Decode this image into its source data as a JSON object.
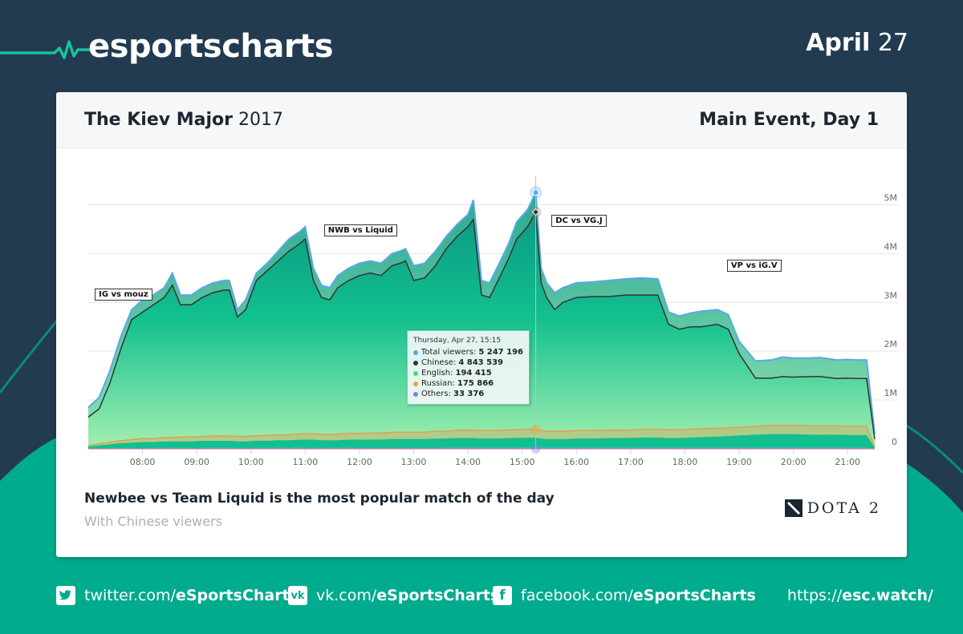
{
  "brand": {
    "name": "esportscharts",
    "date_month": "April",
    "date_day": "27"
  },
  "card": {
    "title_strong": "The Kiev Major",
    "title_year": "2017",
    "subtitle": "Main Event, Day 1",
    "headline": "Newbee vs Team Liquid is the most popular match of the day",
    "subheadline": "With Chinese viewers",
    "game_logo_text": "DOTA 2"
  },
  "colors": {
    "background": "#223b51",
    "accent": "#00ab8e",
    "total_viewers": "#5aa9e6",
    "chinese": "#333333",
    "english": "#3ddc84",
    "russian": "#f59b42",
    "others": "#8080e0"
  },
  "tooltip": {
    "date": "Thursday, Apr 27, 15:15",
    "rows": [
      {
        "label": "Total viewers:",
        "value": "5 247 196",
        "color": "#5aa9e6"
      },
      {
        "label": "Chinese:",
        "value": "4 843 539",
        "color": "#333333"
      },
      {
        "label": "English:",
        "value": "194 415",
        "color": "#3ddc84"
      },
      {
        "label": "Russian:",
        "value": "175 866",
        "color": "#f59b42"
      },
      {
        "label": "Others:",
        "value": "33 376",
        "color": "#8080e0"
      }
    ]
  },
  "chart_data": {
    "type": "area",
    "title": "",
    "xlabel": "",
    "ylabel": "",
    "x_range": [
      "07:00",
      "21:30"
    ],
    "ylim": [
      0,
      5500000
    ],
    "y_ticks": [
      "0",
      "1M",
      "2M",
      "3M",
      "4M",
      "5M"
    ],
    "y_tick_values": [
      0,
      1000000,
      2000000,
      3000000,
      4000000,
      5000000
    ],
    "x_ticks": [
      "08:00",
      "09:00",
      "10:00",
      "11:00",
      "12:00",
      "13:00",
      "14:00",
      "15:00",
      "16:00",
      "17:00",
      "18:00",
      "19:00",
      "20:00",
      "21:00"
    ],
    "grid": true,
    "legend": "none",
    "x_hours": [
      7.0,
      7.2,
      7.4,
      7.6,
      7.8,
      8.0,
      8.2,
      8.4,
      8.55,
      8.7,
      8.9,
      9.1,
      9.3,
      9.5,
      9.6,
      9.75,
      9.9,
      10.1,
      10.3,
      10.5,
      10.7,
      10.9,
      11.0,
      11.15,
      11.3,
      11.45,
      11.6,
      11.8,
      12.0,
      12.2,
      12.4,
      12.6,
      12.75,
      12.85,
      13.0,
      13.2,
      13.4,
      13.6,
      13.8,
      14.0,
      14.1,
      14.25,
      14.4,
      14.6,
      14.75,
      14.9,
      15.1,
      15.25,
      15.35,
      15.45,
      15.6,
      15.75,
      16.0,
      16.3,
      16.6,
      16.9,
      17.2,
      17.5,
      17.7,
      17.9,
      18.1,
      18.3,
      18.6,
      18.8,
      19.0,
      19.15,
      19.3,
      19.6,
      19.8,
      20.0,
      20.3,
      20.5,
      20.8,
      21.0,
      21.2,
      21.35,
      21.5
    ],
    "series": [
      {
        "name": "Total viewers",
        "values": [
          850000,
          1050000,
          1600000,
          2300000,
          2850000,
          3050000,
          3150000,
          3300000,
          3600000,
          3150000,
          3150000,
          3300000,
          3400000,
          3450000,
          3450000,
          2850000,
          3050000,
          3600000,
          3800000,
          4050000,
          4300000,
          4450000,
          4550000,
          3700000,
          3350000,
          3300000,
          3550000,
          3700000,
          3800000,
          3850000,
          3800000,
          4000000,
          4050000,
          4100000,
          3750000,
          3800000,
          4050000,
          4350000,
          4600000,
          4800000,
          5100000,
          3450000,
          3400000,
          3850000,
          4200000,
          4650000,
          4900000,
          5250000,
          3700000,
          3400000,
          3200000,
          3300000,
          3400000,
          3420000,
          3450000,
          3480000,
          3500000,
          3480000,
          2800000,
          2720000,
          2780000,
          2820000,
          2850000,
          2750000,
          2200000,
          2000000,
          1800000,
          1820000,
          1880000,
          1860000,
          1860000,
          1870000,
          1820000,
          1830000,
          1820000,
          1820000,
          300000
        ]
      },
      {
        "name": "Chinese",
        "values": [
          650000,
          820000,
          1350000,
          2050000,
          2650000,
          2800000,
          2950000,
          3100000,
          3350000,
          2950000,
          2950000,
          3100000,
          3200000,
          3250000,
          3250000,
          2700000,
          2850000,
          3450000,
          3650000,
          3850000,
          4050000,
          4200000,
          4300000,
          3450000,
          3100000,
          3050000,
          3300000,
          3450000,
          3550000,
          3600000,
          3550000,
          3750000,
          3800000,
          3850000,
          3450000,
          3500000,
          3750000,
          4100000,
          4350000,
          4550000,
          4700000,
          3150000,
          3100000,
          3550000,
          3900000,
          4300000,
          4550000,
          4850000,
          3400000,
          3100000,
          2850000,
          3000000,
          3100000,
          3120000,
          3120000,
          3150000,
          3150000,
          3150000,
          2550000,
          2450000,
          2500000,
          2500000,
          2550000,
          2450000,
          1950000,
          1700000,
          1450000,
          1450000,
          1480000,
          1470000,
          1480000,
          1480000,
          1440000,
          1450000,
          1440000,
          1440000,
          200000
        ]
      },
      {
        "name": "English",
        "values": [
          40000,
          60000,
          80000,
          100000,
          110000,
          120000,
          120000,
          130000,
          130000,
          130000,
          130000,
          140000,
          140000,
          140000,
          140000,
          130000,
          130000,
          140000,
          140000,
          150000,
          150000,
          160000,
          160000,
          160000,
          150000,
          150000,
          150000,
          160000,
          160000,
          160000,
          160000,
          170000,
          170000,
          170000,
          170000,
          170000,
          180000,
          180000,
          190000,
          190000,
          190000,
          180000,
          180000,
          180000,
          190000,
          190000,
          194415,
          194415,
          180000,
          170000,
          170000,
          170000,
          180000,
          180000,
          190000,
          190000,
          200000,
          200000,
          190000,
          190000,
          200000,
          210000,
          220000,
          230000,
          240000,
          250000,
          260000,
          270000,
          270000,
          270000,
          260000,
          260000,
          260000,
          250000,
          250000,
          250000,
          20000
        ]
      },
      {
        "name": "Russian",
        "values": [
          20000,
          30000,
          40000,
          50000,
          60000,
          70000,
          70000,
          80000,
          80000,
          90000,
          90000,
          90000,
          100000,
          100000,
          100000,
          100000,
          100000,
          100000,
          110000,
          110000,
          110000,
          120000,
          120000,
          120000,
          120000,
          120000,
          120000,
          130000,
          130000,
          130000,
          130000,
          140000,
          140000,
          140000,
          140000,
          140000,
          150000,
          150000,
          160000,
          160000,
          160000,
          160000,
          160000,
          160000,
          170000,
          170000,
          175866,
          175866,
          170000,
          160000,
          160000,
          160000,
          160000,
          160000,
          160000,
          160000,
          170000,
          170000,
          170000,
          170000,
          170000,
          170000,
          170000,
          170000,
          170000,
          170000,
          170000,
          180000,
          180000,
          180000,
          180000,
          180000,
          180000,
          180000,
          180000,
          180000,
          10000
        ]
      },
      {
        "name": "Others",
        "values": [
          10000,
          12000,
          14000,
          16000,
          18000,
          20000,
          20000,
          22000,
          22000,
          22000,
          22000,
          24000,
          24000,
          24000,
          24000,
          24000,
          24000,
          26000,
          26000,
          26000,
          26000,
          28000,
          28000,
          28000,
          28000,
          28000,
          28000,
          28000,
          28000,
          30000,
          30000,
          30000,
          30000,
          30000,
          30000,
          30000,
          30000,
          32000,
          32000,
          32000,
          32000,
          32000,
          32000,
          32000,
          32000,
          33000,
          33376,
          33376,
          32000,
          32000,
          32000,
          32000,
          32000,
          32000,
          32000,
          32000,
          32000,
          32000,
          32000,
          32000,
          32000,
          32000,
          32000,
          32000,
          32000,
          32000,
          32000,
          32000,
          32000,
          32000,
          32000,
          32000,
          32000,
          32000,
          32000,
          32000,
          5000
        ]
      }
    ],
    "annotations": [
      {
        "text": "IG vs mouz",
        "x_hour": 7.15
      },
      {
        "text": "NWB vs Liquid",
        "x_hour": 11.45
      },
      {
        "text": "DC vs VG.J",
        "x_hour": 15.6
      },
      {
        "text": "VP vs iG.V",
        "x_hour": 18.85
      }
    ],
    "highlight": {
      "x_hour": 15.25,
      "label": "Thursday, Apr 27, 15:15"
    }
  },
  "footer": {
    "links": [
      {
        "icon": "twitter-icon",
        "prefix": "twitter.com/",
        "handle": "eSportsCharts"
      },
      {
        "icon": "vk-icon",
        "prefix": "vk.com/",
        "handle": "eSportsCharts"
      },
      {
        "icon": "facebook-icon",
        "prefix": "facebook.com/",
        "handle": "eSportsCharts"
      }
    ],
    "site_prefix": "https://",
    "site_domain": "esc.watch/"
  }
}
